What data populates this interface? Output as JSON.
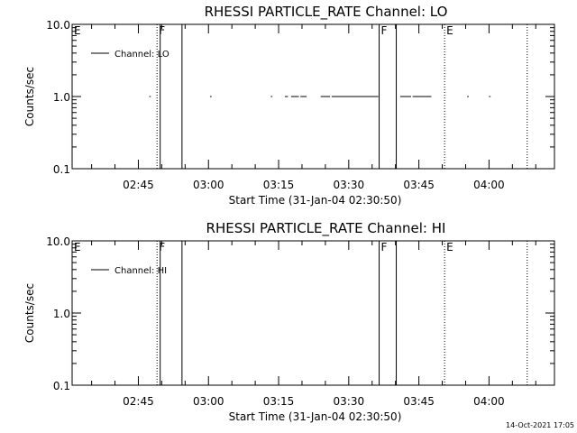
{
  "footer": {
    "timestamp": "14-Oct-2021 17:05"
  },
  "chart_data": [
    {
      "type": "line",
      "title": "RHESSI PARTICLE_RATE Channel: LO",
      "xlabel": "Start Time (31-Jan-04 02:30:50)",
      "ylabel": "Counts/sec",
      "y_scale": "log",
      "ylim": [
        0.1,
        10.0
      ],
      "xlim": [
        "02:30:50",
        "04:14:00"
      ],
      "x_ticks": [
        "02:45",
        "03:00",
        "03:15",
        "03:30",
        "03:45",
        "04:00"
      ],
      "y_ticks": [
        "0.1",
        "1.0",
        "10.0"
      ],
      "legend": {
        "label": "Channel: LO",
        "position": "top-left"
      },
      "markers": [
        {
          "label": "E",
          "time": "02:30:50",
          "style": "none"
        },
        {
          "label": "F",
          "time": "02:49:00",
          "style": "dotted"
        },
        {
          "label": "",
          "time": "02:49:40",
          "style": "solid"
        },
        {
          "label": "",
          "time": "02:54:20",
          "style": "solid"
        },
        {
          "label": "F",
          "time": "03:36:30",
          "style": "solid"
        },
        {
          "label": "",
          "time": "03:40:10",
          "style": "solid"
        },
        {
          "label": "E",
          "time": "03:50:30",
          "style": "dotted"
        },
        {
          "label": "",
          "time": "04:08:10",
          "style": "dotted"
        }
      ],
      "series": [
        {
          "value": 1.0,
          "segments": [
            [
              "02:47:20",
              "02:47:40"
            ],
            [
              "03:00:20",
              "03:00:40"
            ],
            [
              "03:13:20",
              "03:13:40"
            ],
            [
              "03:16:20",
              "03:17:00"
            ],
            [
              "03:17:40",
              "03:19:20"
            ],
            [
              "03:19:40",
              "03:21:00"
            ],
            [
              "03:24:00",
              "03:26:00"
            ],
            [
              "03:26:20",
              "03:36:20"
            ],
            [
              "03:41:00",
              "03:43:20"
            ],
            [
              "03:43:40",
              "03:47:40"
            ],
            [
              "03:55:20",
              "03:55:40"
            ],
            [
              "04:00:00",
              "04:00:20"
            ]
          ]
        }
      ]
    },
    {
      "type": "line",
      "title": "RHESSI PARTICLE_RATE Channel: HI",
      "xlabel": "Start Time (31-Jan-04 02:30:50)",
      "ylabel": "Counts/sec",
      "y_scale": "log",
      "ylim": [
        0.1,
        10.0
      ],
      "xlim": [
        "02:30:50",
        "04:14:00"
      ],
      "x_ticks": [
        "02:45",
        "03:00",
        "03:15",
        "03:30",
        "03:45",
        "04:00"
      ],
      "y_ticks": [
        "0.1",
        "1.0",
        "10.0"
      ],
      "legend": {
        "label": "Channel: HI",
        "position": "top-left"
      },
      "markers": [
        {
          "label": "E",
          "time": "02:30:50",
          "style": "none"
        },
        {
          "label": "F",
          "time": "02:49:00",
          "style": "dotted"
        },
        {
          "label": "",
          "time": "02:49:40",
          "style": "solid"
        },
        {
          "label": "",
          "time": "02:54:20",
          "style": "solid"
        },
        {
          "label": "F",
          "time": "03:36:30",
          "style": "solid"
        },
        {
          "label": "",
          "time": "03:40:10",
          "style": "solid"
        },
        {
          "label": "E",
          "time": "03:50:30",
          "style": "dotted"
        },
        {
          "label": "",
          "time": "04:08:10",
          "style": "dotted"
        }
      ],
      "series": [
        {
          "value": 1.0,
          "segments": []
        }
      ]
    }
  ]
}
